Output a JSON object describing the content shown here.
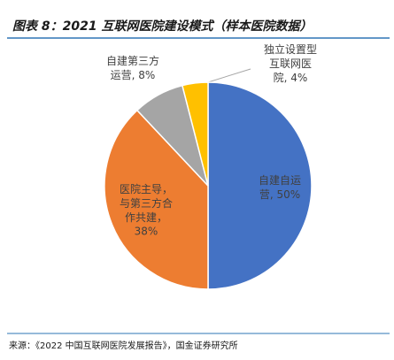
{
  "chart_data": {
    "type": "pie",
    "title": "图表 8：2021 互联网医院建设模式（样本医院数据）",
    "source": "来源：《2022 中国互联网医院发展报告》，国金证券研究所",
    "categories": [
      [
        "自建自运",
        "营,"
      ],
      [
        "医院主导，",
        "与第三方合",
        "作共建，"
      ],
      [
        "自建第三方",
        "运营,"
      ],
      [
        "独立设置型",
        "互联网医",
        "院,"
      ]
    ],
    "values": [
      50,
      38,
      8,
      4
    ],
    "value_labels": [
      "50%",
      "38%",
      "8%",
      "4%"
    ],
    "colors": [
      "#4472c4",
      "#ed7d31",
      "#a5a5a5",
      "#ffc000"
    ]
  }
}
